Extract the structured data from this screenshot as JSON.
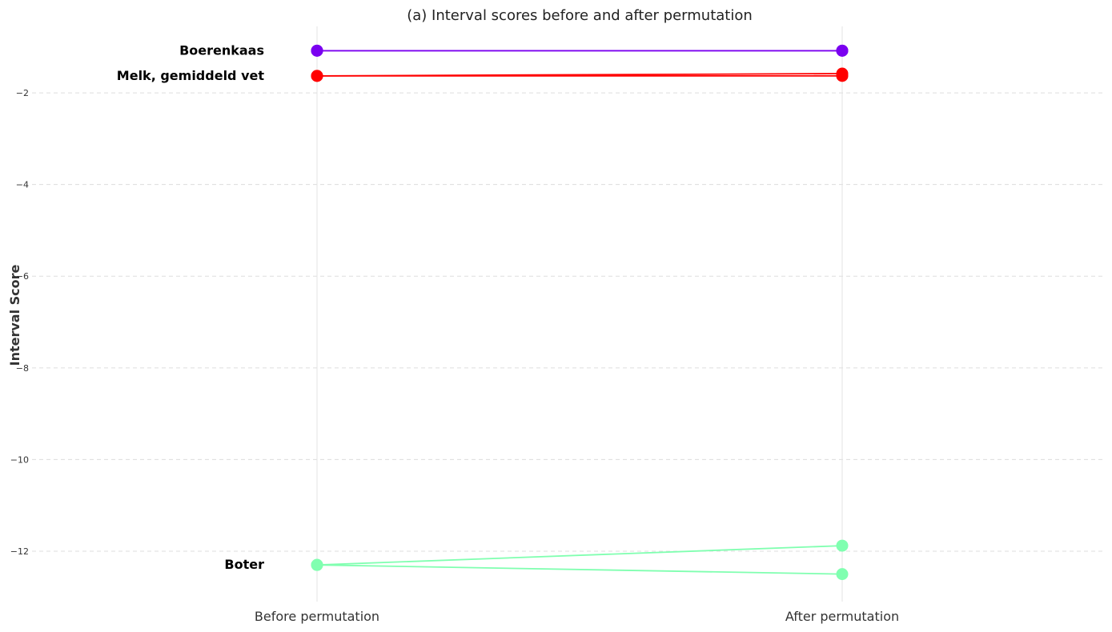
{
  "chart_data": {
    "type": "line",
    "title": "(a) Interval scores before and after permutation",
    "ylabel": "Interval Score",
    "xlabel": "",
    "categories": [
      "Before permutation",
      "After permutation"
    ],
    "ylim": [
      -13.1,
      -0.55
    ],
    "yticks": [
      -2,
      -4,
      -6,
      -8,
      -10,
      -12
    ],
    "ytick_labels": [
      "−2",
      "−4",
      "−6",
      "−8",
      "−10",
      "−12"
    ],
    "grid": "horizontal dashed",
    "colors": {
      "boerenkaas": "#7a00f0",
      "melk": "#ff0000",
      "boter": "#80ffb0"
    },
    "series": [
      {
        "name": "Boerenkaas",
        "color": "#7a00f0",
        "values": [
          -1.08,
          -1.08
        ]
      },
      {
        "name": "",
        "color": "#7a00f0",
        "values": [
          -1.08,
          -1.08
        ]
      },
      {
        "name": "Melk, gemiddeld vet",
        "color": "#ff0000",
        "values": [
          -1.63,
          -1.58
        ]
      },
      {
        "name": "",
        "color": "#ff0000",
        "values": [
          -1.63,
          -1.63
        ]
      },
      {
        "name": "Boter",
        "color": "#80ffb0",
        "values": [
          -12.3,
          -11.88
        ]
      },
      {
        "name": "",
        "color": "#80ffb0",
        "values": [
          -12.3,
          -12.5
        ]
      }
    ]
  }
}
